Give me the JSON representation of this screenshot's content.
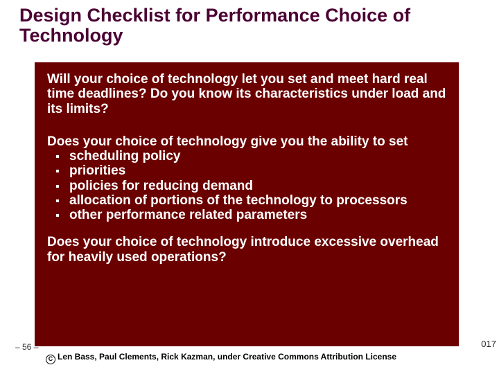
{
  "colors": {
    "title_color": "#4b0033",
    "body_bg": "#6b0000",
    "body_text": "#ffffff",
    "slide_bg": "#ffffff"
  },
  "typography": {
    "title_fontsize": 27,
    "title_weight": "bold",
    "body_fontsize": 19,
    "body_weight": "bold",
    "footer_fontsize": 12
  },
  "title": "Design Checklist for Performance Choice of Technology",
  "paragraphs": {
    "p1": "Will your choice of technology let you set and meet hard real time deadlines? Do you know its characteristics under load and its limits?",
    "p2_lead": "Does your choice of technology give you the ability to set",
    "p3": "Does your choice of technology introduce excessive overhead for heavily used operations?"
  },
  "bullets": {
    "b0": "scheduling policy",
    "b1": "priorities",
    "b2": "policies for reducing demand",
    "b3": "allocation of portions of the technology to processors",
    "b4": "other performance related parameters"
  },
  "footer": {
    "page": "– 56 –",
    "year_frag": "017",
    "license": "Len Bass, Paul Clements, Rick Kazman, under Creative Commons Attribution License"
  }
}
